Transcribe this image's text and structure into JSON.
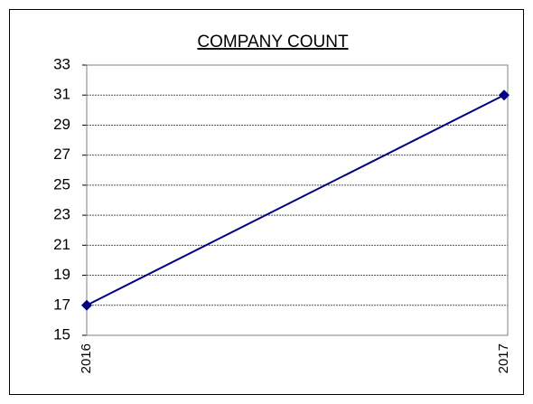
{
  "chart_data": {
    "type": "line",
    "title": "COMPANY COUNT",
    "categories": [
      "2016",
      "2017"
    ],
    "series": [
      {
        "name": "Company count",
        "color": "#000080",
        "values": [
          17,
          31
        ]
      }
    ],
    "ylim": [
      15,
      33
    ],
    "yticks": [
      15,
      17,
      19,
      21,
      23,
      25,
      27,
      29,
      31,
      33
    ],
    "grid": true
  }
}
